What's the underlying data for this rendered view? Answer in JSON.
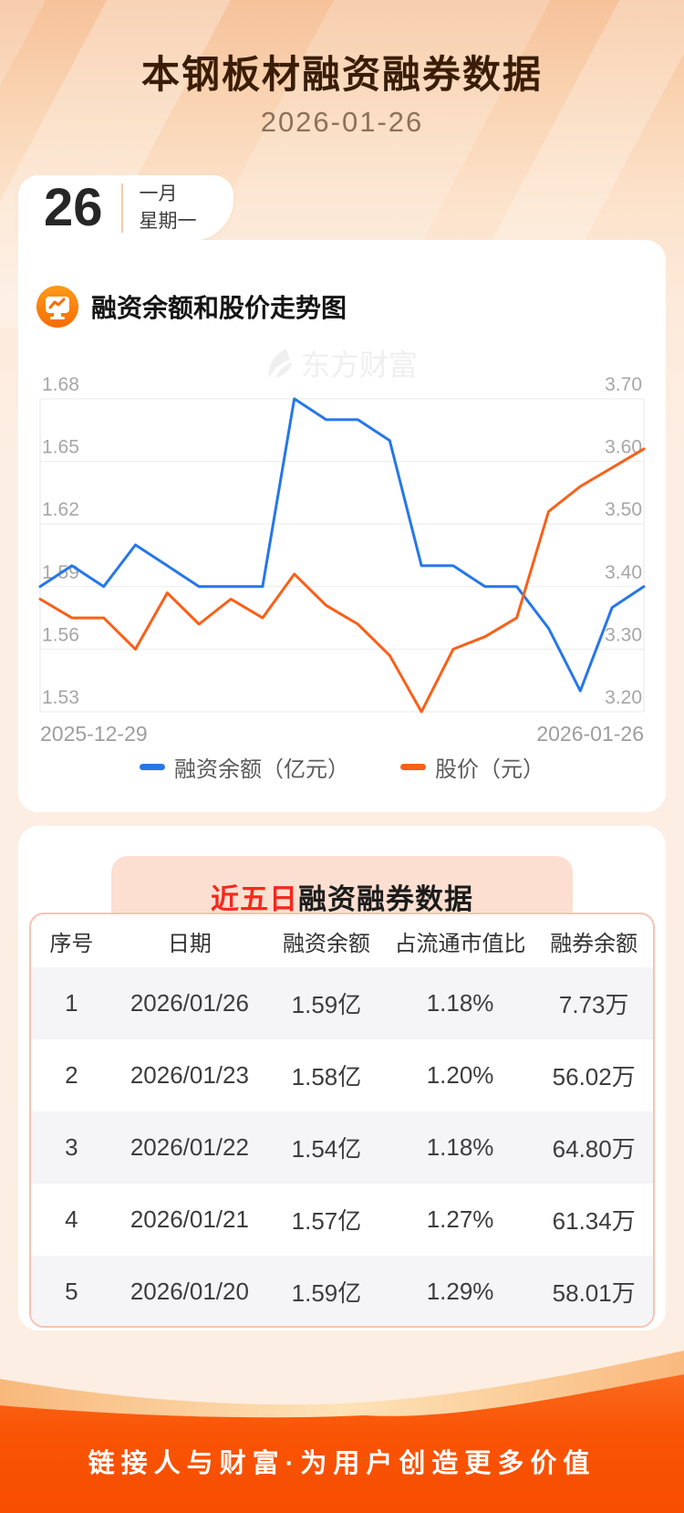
{
  "page": {
    "title": "本钢板材融资融券数据",
    "date": "2026-01-26",
    "calendar": {
      "day": "26",
      "month": "一月",
      "weekday": "星期一"
    },
    "watermark": "东方财富",
    "footer_slogan": "链接人与财富·为用户创造更多价值",
    "accent_color": "#f95304",
    "background_color": "#fdeee3"
  },
  "chart_section": {
    "title": "融资余额和股价走势图"
  },
  "chart_data": {
    "type": "line",
    "x_range": [
      "2025-12-29",
      "2026-01-26"
    ],
    "grid": true,
    "legend_position": "bottom",
    "left_axis": {
      "label": "融资余额（亿元）",
      "min": 1.53,
      "max": 1.68,
      "ticks": [
        1.68,
        1.65,
        1.62,
        1.59,
        1.56,
        1.53
      ]
    },
    "right_axis": {
      "label": "股价（元）",
      "min": 3.2,
      "max": 3.7,
      "ticks": [
        3.7,
        3.6,
        3.5,
        3.4,
        3.3,
        3.2
      ]
    },
    "series": [
      {
        "name": "融资余额（亿元）",
        "axis": "left",
        "color": "#2577e9",
        "values": [
          1.59,
          1.6,
          1.59,
          1.61,
          1.6,
          1.59,
          1.59,
          1.59,
          1.68,
          1.67,
          1.67,
          1.66,
          1.6,
          1.6,
          1.59,
          1.59,
          1.57,
          1.54,
          1.58,
          1.59
        ]
      },
      {
        "name": "股价（元）",
        "axis": "right",
        "color": "#f96018",
        "values": [
          3.38,
          3.35,
          3.35,
          3.3,
          3.39,
          3.34,
          3.38,
          3.35,
          3.42,
          3.37,
          3.34,
          3.29,
          3.2,
          3.3,
          3.32,
          3.35,
          3.52,
          3.56,
          3.59,
          3.62
        ]
      }
    ]
  },
  "table_section": {
    "title_highlight": "近五日",
    "title_rest": "融资融券数据",
    "headers": [
      "序号",
      "日期",
      "融资余额",
      "占流通市值比",
      "融券余额"
    ],
    "rows": [
      [
        "1",
        "2026/01/26",
        "1.59亿",
        "1.18%",
        "7.73万"
      ],
      [
        "2",
        "2026/01/23",
        "1.58亿",
        "1.20%",
        "56.02万"
      ],
      [
        "3",
        "2026/01/22",
        "1.54亿",
        "1.18%",
        "64.80万"
      ],
      [
        "4",
        "2026/01/21",
        "1.57亿",
        "1.27%",
        "61.34万"
      ],
      [
        "5",
        "2026/01/20",
        "1.59亿",
        "1.29%",
        "58.01万"
      ]
    ]
  }
}
